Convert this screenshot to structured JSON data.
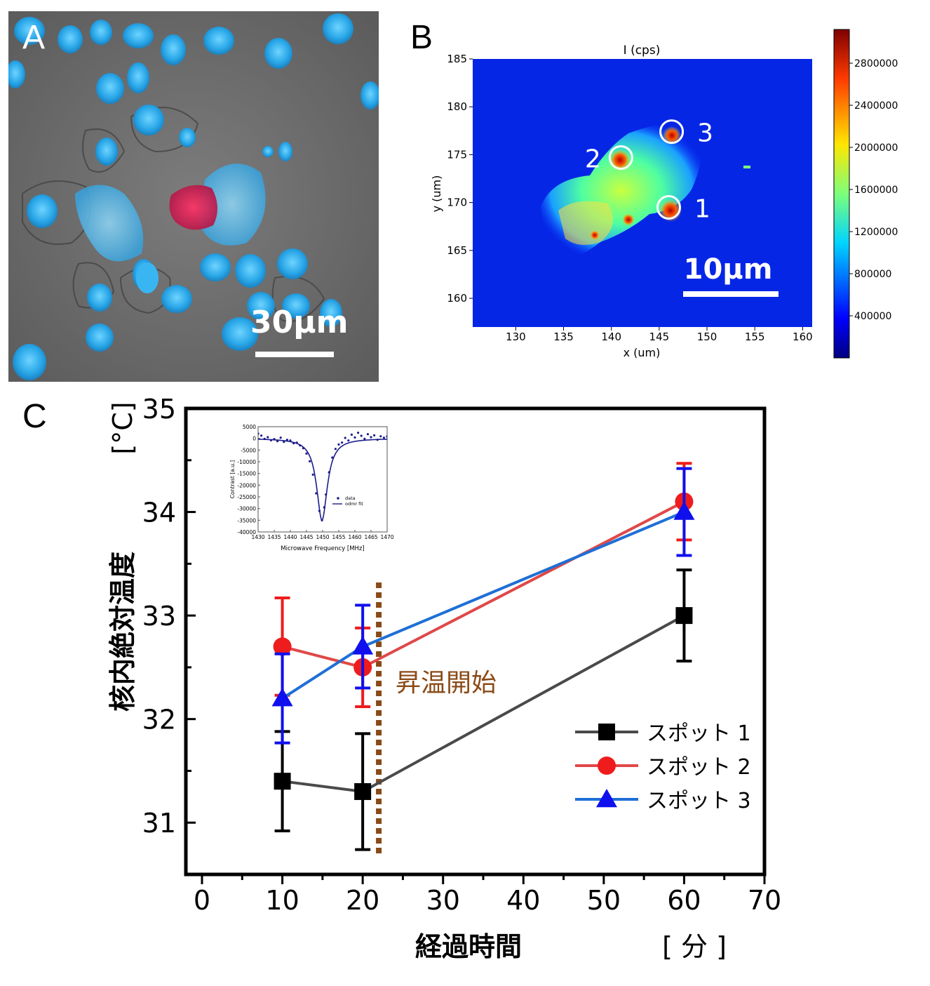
{
  "panels": {
    "a": {
      "letter": "A",
      "scale_label": "30μm"
    },
    "b": {
      "letter": "B",
      "title": "I (cps)",
      "xlabel": "x (um)",
      "ylabel": "y (um)",
      "scale_label": "10μm",
      "xticks": [
        "130",
        "135",
        "140",
        "145",
        "150",
        "155",
        "160"
      ],
      "yticks": [
        "160",
        "165",
        "170",
        "175",
        "180",
        "185"
      ],
      "colorbar_ticks": [
        "400000",
        "800000",
        "1200000",
        "1600000",
        "2000000",
        "2400000",
        "2800000"
      ],
      "spots": [
        {
          "label": "1",
          "x": 146,
          "y": 169.5
        },
        {
          "label": "2",
          "x": 141,
          "y": 174.7
        },
        {
          "label": "3",
          "x": 146.3,
          "y": 177.4
        }
      ]
    },
    "c": {
      "letter": "C"
    }
  },
  "chart_data": {
    "type": "line",
    "ylabel": "核内絶対温度",
    "yunit": "[°C]",
    "xlabel": "経過時間",
    "xunit": "[ 分 ]",
    "xlim": [
      0,
      70
    ],
    "ylim": [
      30.5,
      35
    ],
    "xticks": [
      "0",
      "10",
      "20",
      "30",
      "40",
      "50",
      "60",
      "70"
    ],
    "yticks": [
      "31",
      "32",
      "33",
      "34",
      "35"
    ],
    "annotation": {
      "text": "昇温開始",
      "x": 22,
      "color": "#8a4a17"
    },
    "series": [
      {
        "name": "スポット 1",
        "color": "#4a4a4a",
        "marker_color": "#000000",
        "marker": "square",
        "x": [
          10,
          20,
          60
        ],
        "y": [
          31.4,
          31.3,
          33.0
        ],
        "err": [
          0.48,
          0.56,
          0.44
        ]
      },
      {
        "name": "スポット 2",
        "color": "#e04848",
        "marker_color": "#ee1c1c",
        "marker": "circle",
        "x": [
          10,
          20,
          60
        ],
        "y": [
          32.7,
          32.5,
          34.1
        ],
        "err": [
          0.47,
          0.38,
          0.37
        ]
      },
      {
        "name": "スポット 3",
        "color": "#1f6fd6",
        "marker_color": "#1010ee",
        "marker": "triangle",
        "x": [
          10,
          20,
          60
        ],
        "y": [
          32.2,
          32.7,
          34.0
        ],
        "err": [
          0.43,
          0.4,
          0.42
        ]
      }
    ],
    "inset": {
      "type": "scatter",
      "xlabel": "Microwave Frequency [MHz]",
      "ylabel": "Contrast [a.u.]",
      "xlim": [
        1430,
        1470
      ],
      "ylim": [
        -40000,
        5000
      ],
      "xticks": [
        "1430",
        "1435",
        "1440",
        "1445",
        "1450",
        "1455",
        "1460",
        "1465",
        "1470"
      ],
      "yticks": [
        "5000",
        "0",
        "-5000",
        "-10000",
        "-15000",
        "-20000",
        "-25000",
        "-30000",
        "-35000",
        "-40000"
      ],
      "legend": [
        "data",
        "odmr fit"
      ],
      "fit": {
        "center": 1449.8,
        "depth": -35000,
        "width": 2.5,
        "baseline": 0
      },
      "data": {
        "x": [
          1430,
          1431,
          1432,
          1433,
          1434,
          1435,
          1436,
          1437,
          1438,
          1439,
          1440,
          1441,
          1442,
          1443,
          1444,
          1445,
          1446,
          1447,
          1448,
          1449,
          1449.8,
          1450.5,
          1451,
          1452,
          1453,
          1454,
          1455,
          1456,
          1457,
          1458,
          1459,
          1460,
          1461,
          1462,
          1463,
          1464,
          1465,
          1466,
          1467,
          1468,
          1469,
          1470
        ],
        "y": [
          2000,
          1200,
          -200,
          500,
          -800,
          -300,
          -1200,
          300,
          -1500,
          -600,
          -900,
          -2100,
          -1800,
          -3000,
          -4200,
          -6500,
          -9800,
          -15500,
          -23500,
          -31000,
          -35000,
          -29500,
          -24000,
          -14500,
          -8200,
          -4500,
          -2600,
          -1800,
          200,
          -900,
          1600,
          400,
          2400,
          1100,
          -200,
          1800,
          500,
          1300,
          -600,
          900,
          300,
          800
        ]
      }
    }
  }
}
